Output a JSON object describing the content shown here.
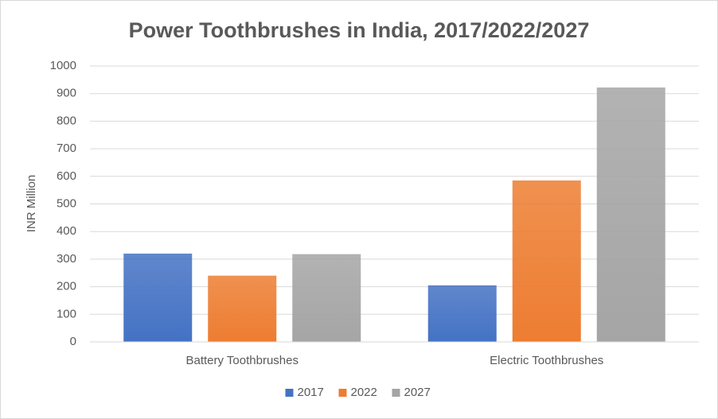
{
  "chart_data": {
    "type": "bar",
    "title": "Power Toothbrushes in India, 2017/2022/2027",
    "y_label": "INR Million",
    "categories": [
      "Battery Toothbrushes",
      "Electric Toothbrushes"
    ],
    "series": [
      {
        "name": "2017",
        "color": "#4472c4",
        "values": [
          320,
          205
        ]
      },
      {
        "name": "2022",
        "color": "#ed7d31",
        "values": [
          240,
          585
        ]
      },
      {
        "name": "2027",
        "color": "#a5a5a5",
        "values": [
          318,
          922
        ]
      }
    ],
    "ylim": [
      0,
      1000
    ],
    "yticks": [
      0,
      100,
      200,
      300,
      400,
      500,
      600,
      700,
      800,
      900,
      1000
    ],
    "grid": true,
    "legend": "bottom"
  }
}
